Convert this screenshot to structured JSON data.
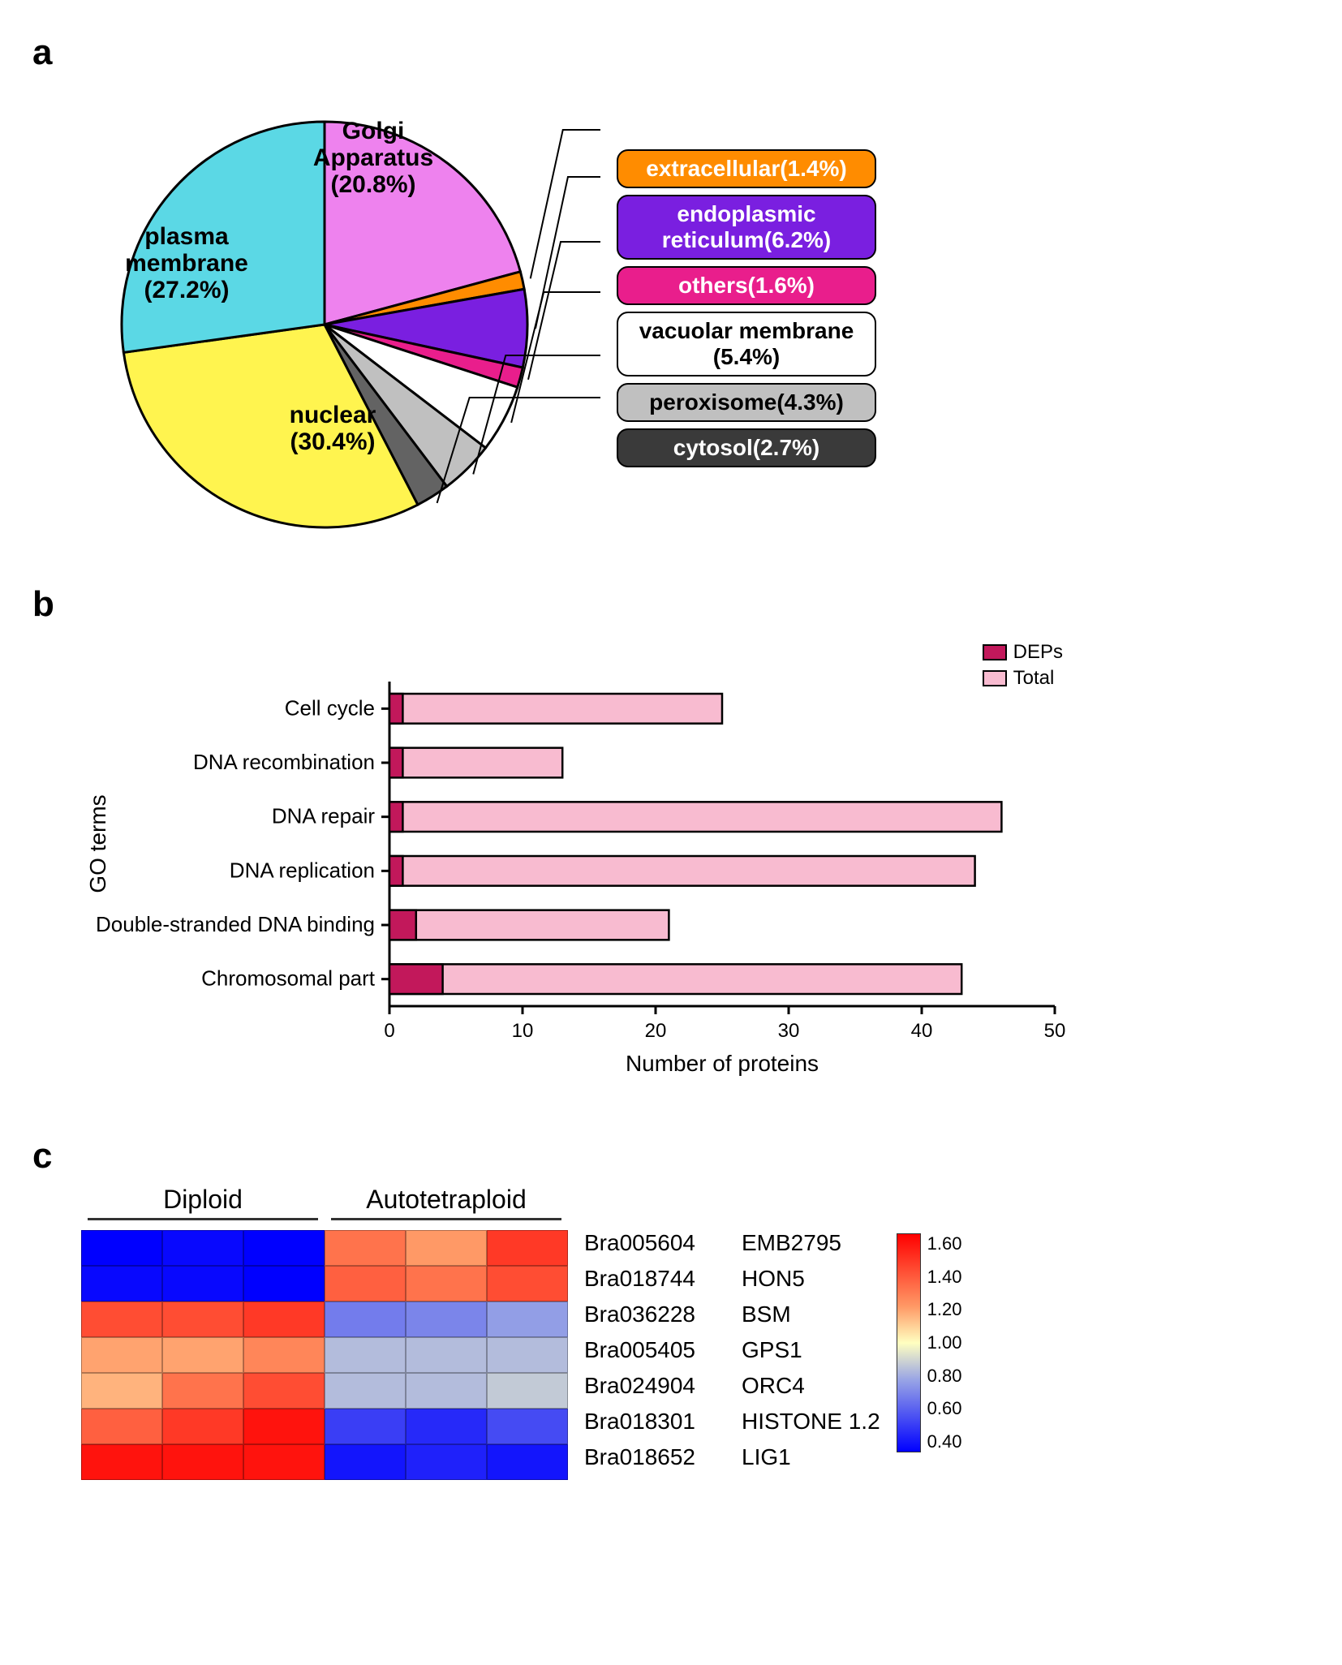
{
  "panel_a": {
    "label": "a",
    "type": "pie",
    "slices": [
      {
        "label": "Golgi Apparatus",
        "percent": 20.8,
        "color": "#ee82ee"
      },
      {
        "label": "extracellular",
        "percent": 1.4,
        "color": "#ff8c00"
      },
      {
        "label": "endoplasmic reticulum",
        "percent": 6.2,
        "color": "#7a1fe0"
      },
      {
        "label": "others",
        "percent": 1.6,
        "color": "#e91e8c"
      },
      {
        "label": "vacuolar membrane",
        "percent": 5.4,
        "color": "#ffffff"
      },
      {
        "label": "peroxisome",
        "percent": 4.3,
        "color": "#c0c0c0"
      },
      {
        "label": "cytosol",
        "percent": 2.7,
        "color": "#636363"
      },
      {
        "label": "nuclear",
        "percent": 30.4,
        "color": "#fff44f"
      },
      {
        "label": "plasma membrane",
        "percent": 27.2,
        "color": "#5bd8e5"
      }
    ],
    "big_slice_text": {
      "golgi": "Golgi\nApparatus\n(20.8%)",
      "plasma": "plasma\nmembrane\n(27.2%)",
      "nuclear": "nuclear\n(30.4%)"
    },
    "side_legend": [
      {
        "text": "extracellular(1.4%)",
        "bg": "#ff8c00",
        "fg": "#ffffff"
      },
      {
        "text": "endoplasmic reticulum(6.2%)",
        "bg": "#7a1fe0",
        "fg": "#ffffff",
        "twoLine": true,
        "line1": "endoplasmic",
        "line2": "reticulum(6.2%)"
      },
      {
        "text": "others(1.6%)",
        "bg": "#e91e8c",
        "fg": "#ffffff"
      },
      {
        "text": "vacuolar membrane (5.4%)",
        "bg": "#ffffff",
        "fg": "#000000",
        "twoLine": true,
        "line1": "vacuolar membrane",
        "line2": "(5.4%)"
      },
      {
        "text": "peroxisome(4.3%)",
        "bg": "#c0c0c0",
        "fg": "#000000"
      },
      {
        "text": "cytosol(2.7%)",
        "bg": "#3a3a3a",
        "fg": "#ffffff"
      }
    ],
    "stroke": "#000000",
    "stroke_width": 3,
    "label_fontsize": 30,
    "legend_fontsize": 28
  },
  "panel_b": {
    "label": "b",
    "type": "bar",
    "ylabel": "GO terms",
    "xlabel": "Number of proteins",
    "xlim": [
      0,
      50
    ],
    "xtick_step": 10,
    "categories": [
      "Cell cycle",
      "DNA recombination",
      "DNA repair",
      "DNA replication",
      "Double-stranded DNA binding",
      "Chromosomal part"
    ],
    "series": [
      {
        "name": "DEPs",
        "color": "#c2185b",
        "values": [
          1,
          1,
          1,
          1,
          2,
          4
        ]
      },
      {
        "name": "Total",
        "color": "#f8bbd0",
        "values": [
          25,
          13,
          46,
          44,
          21,
          43
        ]
      }
    ],
    "bar_stroke": "#000000",
    "bar_stroke_width": 2.5,
    "label_fontsize": 26,
    "axis_fontsize": 28,
    "tick_fontsize": 24
  },
  "panel_c": {
    "label": "c",
    "type": "heatmap",
    "col_groups": [
      {
        "label": "Diploid",
        "span": 3
      },
      {
        "label": "Autotetraploid",
        "span": 3
      }
    ],
    "rows": [
      {
        "id": "Bra005604",
        "name": "EMB2795",
        "values": [
          0.4,
          0.42,
          0.4,
          1.3,
          1.2,
          1.45
        ]
      },
      {
        "id": "Bra018744",
        "name": "HON5",
        "values": [
          0.42,
          0.42,
          0.4,
          1.35,
          1.3,
          1.4
        ]
      },
      {
        "id": "Bra036228",
        "name": "BSM",
        "values": [
          1.4,
          1.4,
          1.45,
          0.7,
          0.72,
          0.78
        ]
      },
      {
        "id": "Bra005405",
        "name": "GPS1",
        "values": [
          1.18,
          1.18,
          1.25,
          0.85,
          0.85,
          0.85
        ]
      },
      {
        "id": "Bra024904",
        "name": "ORC4",
        "values": [
          1.15,
          1.3,
          1.4,
          0.85,
          0.85,
          0.88
        ]
      },
      {
        "id": "Bra018301",
        "name": "HISTONE 1.2",
        "values": [
          1.35,
          1.45,
          1.55,
          0.55,
          0.5,
          0.58
        ]
      },
      {
        "id": "Bra018652",
        "name": "LIG1",
        "values": [
          1.55,
          1.55,
          1.55,
          0.45,
          0.48,
          0.45
        ]
      }
    ],
    "colorscale": {
      "min": 0.4,
      "max": 1.6,
      "stops": [
        {
          "v": 0.4,
          "c": "#0000ff"
        },
        {
          "v": 0.8,
          "c": "#9aa6e5"
        },
        {
          "v": 1.0,
          "c": "#ffffc0"
        },
        {
          "v": 1.2,
          "c": "#ff9966"
        },
        {
          "v": 1.6,
          "c": "#ff0000"
        }
      ],
      "ticks": [
        1.6,
        1.4,
        1.2,
        1.0,
        0.8,
        0.6,
        0.4
      ]
    },
    "label_fontsize": 28,
    "header_fontsize": 32,
    "tick_fontsize": 22
  }
}
